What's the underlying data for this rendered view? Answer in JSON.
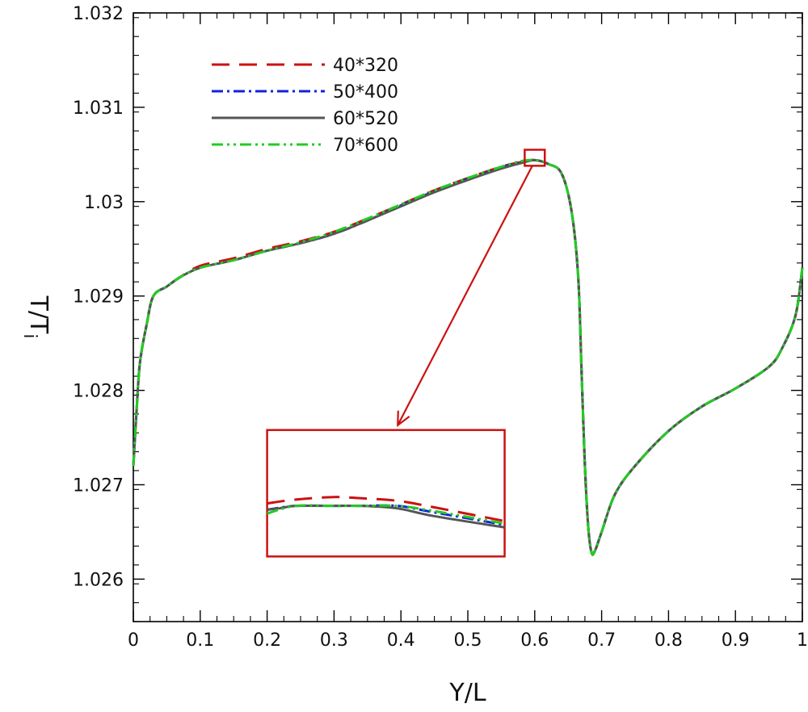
{
  "chart_data": {
    "type": "line",
    "title": "",
    "xlabel": "Y/L",
    "ylabel": "T/T",
    "ylabel_subscript": "i",
    "xlim": [
      0,
      1
    ],
    "ylim": [
      1.02555,
      1.032
    ],
    "x_ticks": [
      0,
      0.1,
      0.2,
      0.3,
      0.4,
      0.5,
      0.6,
      0.7,
      0.8,
      0.9,
      1
    ],
    "x_tick_labels": [
      "0",
      "0.1",
      "0.2",
      "0.3",
      "0.4",
      "0.5",
      "0.6",
      "0.7",
      "0.8",
      "0.9",
      "1"
    ],
    "y_ticks": [
      1.026,
      1.027,
      1.028,
      1.029,
      1.03,
      1.031,
      1.032
    ],
    "y_tick_labels": [
      "1.026",
      "1.027",
      "1.028",
      "1.029",
      "1.03",
      "1.031",
      "1.032"
    ],
    "grid": false,
    "legend_position": "top-left",
    "x": [
      0,
      0.005,
      0.01,
      0.02,
      0.03,
      0.05,
      0.07,
      0.1,
      0.15,
      0.2,
      0.25,
      0.3,
      0.35,
      0.4,
      0.45,
      0.5,
      0.55,
      0.58,
      0.6,
      0.62,
      0.64,
      0.655,
      0.665,
      0.67,
      0.675,
      0.68,
      0.685,
      0.69,
      0.7,
      0.72,
      0.75,
      0.8,
      0.85,
      0.9,
      0.95,
      0.97,
      0.99,
      1
    ],
    "series": [
      {
        "name": "40*320",
        "color": "#cc1111",
        "dash": "22,12",
        "values": [
          1.0272,
          1.0278,
          1.0283,
          1.0287,
          1.029,
          1.0291,
          1.0292,
          1.02932,
          1.0294,
          1.0295,
          1.02958,
          1.02968,
          1.02982,
          1.02997,
          1.03012,
          1.03025,
          1.03037,
          1.03042,
          1.03044,
          1.0304,
          1.0303,
          1.0299,
          1.0292,
          1.0282,
          1.0272,
          1.02655,
          1.02628,
          1.0263,
          1.0265,
          1.0269,
          1.0272,
          1.02757,
          1.02783,
          1.02802,
          1.02825,
          1.02845,
          1.0288,
          1.0293
        ]
      },
      {
        "name": "50*400",
        "color": "#1122dd",
        "dash": "14,5,3,5",
        "values": [
          1.0272,
          1.0278,
          1.0283,
          1.0287,
          1.029,
          1.0291,
          1.0292,
          1.0293,
          1.02938,
          1.02948,
          1.02956,
          1.02966,
          1.0298,
          1.02996,
          1.03011,
          1.03024,
          1.03036,
          1.03042,
          1.03044,
          1.0304,
          1.0303,
          1.0299,
          1.0292,
          1.0282,
          1.0272,
          1.02655,
          1.02628,
          1.0263,
          1.0265,
          1.0269,
          1.0272,
          1.02757,
          1.02783,
          1.02802,
          1.02825,
          1.02845,
          1.0288,
          1.0293
        ]
      },
      {
        "name": "60*520",
        "color": "#555555",
        "dash": "",
        "values": [
          1.0272,
          1.0278,
          1.0283,
          1.0287,
          1.029,
          1.0291,
          1.0292,
          1.0293,
          1.02938,
          1.02948,
          1.02956,
          1.02966,
          1.0298,
          1.02995,
          1.0301,
          1.03023,
          1.03035,
          1.03041,
          1.03044,
          1.0304,
          1.0303,
          1.0299,
          1.0292,
          1.0282,
          1.0272,
          1.02655,
          1.02628,
          1.0263,
          1.0265,
          1.0269,
          1.0272,
          1.02757,
          1.02783,
          1.02802,
          1.02825,
          1.02845,
          1.0288,
          1.0293
        ]
      },
      {
        "name": "70*600",
        "color": "#22cc22",
        "dash": "14,5,3,5,3,5",
        "values": [
          1.0272,
          1.0278,
          1.0283,
          1.0287,
          1.029,
          1.0291,
          1.0292,
          1.0293,
          1.02938,
          1.02948,
          1.02957,
          1.02968,
          1.02982,
          1.02997,
          1.03012,
          1.03025,
          1.03037,
          1.03043,
          1.03044,
          1.0304,
          1.0303,
          1.0299,
          1.0292,
          1.0282,
          1.0272,
          1.02655,
          1.02628,
          1.0263,
          1.0265,
          1.0269,
          1.0272,
          1.02757,
          1.02783,
          1.02802,
          1.02825,
          1.02845,
          1.0288,
          1.0293
        ]
      }
    ],
    "annotation": {
      "type": "zoom-inset",
      "color": "#cc1111",
      "target_region": {
        "x": [
          0.585,
          0.615
        ],
        "y": [
          1.03038,
          1.03055
        ]
      },
      "inset_region": {
        "x": [
          0.2,
          0.555
        ],
        "y": [
          1.02624,
          1.02758
        ]
      },
      "inset_series": [
        {
          "name": "40*320",
          "x": [
            0,
            0.12,
            0.28,
            0.4,
            0.55,
            0.7,
            1
          ],
          "y": [
            0.58,
            0.55,
            0.53,
            0.54,
            0.56,
            0.61,
            0.72
          ]
        },
        {
          "name": "50*400",
          "x": [
            0,
            0.12,
            0.28,
            0.4,
            0.55,
            0.7,
            1
          ],
          "y": [
            0.63,
            0.6,
            0.6,
            0.6,
            0.6,
            0.65,
            0.75
          ]
        },
        {
          "name": "60*520",
          "x": [
            0,
            0.05,
            0.12,
            0.28,
            0.4,
            0.55,
            0.7,
            1
          ],
          "y": [
            0.63,
            0.62,
            0.6,
            0.6,
            0.6,
            0.62,
            0.68,
            0.77
          ]
        },
        {
          "name": "70*600",
          "x": [
            0,
            0.12,
            0.28,
            0.4,
            0.55,
            0.7,
            1
          ],
          "y": [
            0.66,
            0.6,
            0.6,
            0.6,
            0.6,
            0.64,
            0.74
          ]
        }
      ]
    }
  }
}
